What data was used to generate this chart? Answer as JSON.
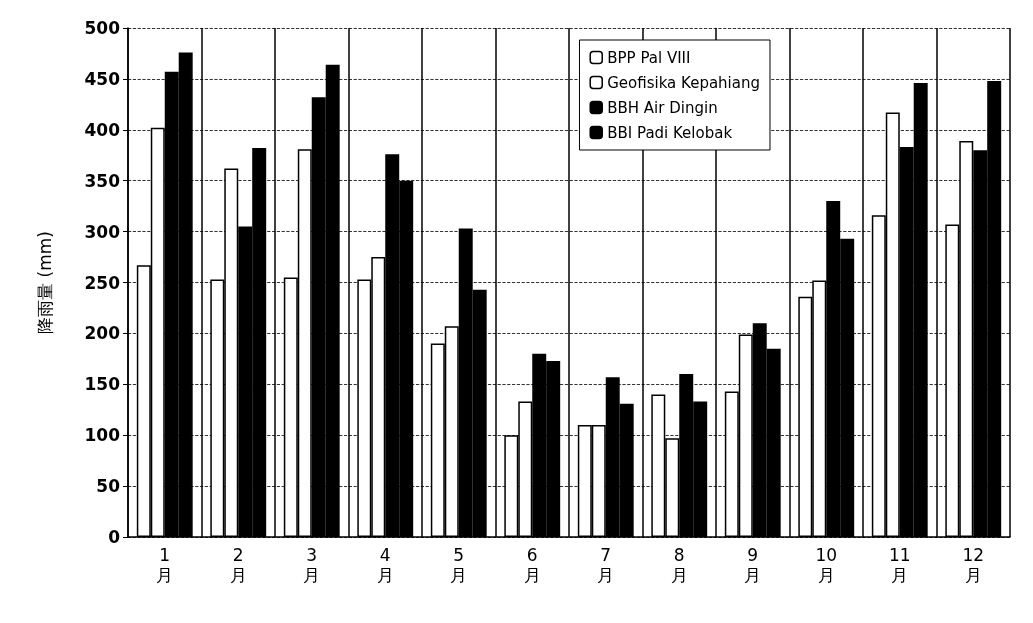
{
  "chart_data": {
    "type": "bar",
    "ylabel": "降雨量 (mm)",
    "categories": [
      "1月",
      "2月",
      "3月",
      "4月",
      "5月",
      "6月",
      "7月",
      "8月",
      "9月",
      "10月",
      "11月",
      "12月"
    ],
    "series": [
      {
        "name": "BPP Pal VIII",
        "color": "#ffffff",
        "values": [
          267,
          253,
          255,
          253,
          190,
          100,
          110,
          140,
          143,
          236,
          316,
          307
        ]
      },
      {
        "name": "Geofisika Kepahiang",
        "color": "#ffffff",
        "values": [
          402,
          362,
          381,
          275,
          207,
          133,
          110,
          97,
          199,
          252,
          417,
          389
        ]
      },
      {
        "name": "BBH Air Dingin",
        "color": "#000000",
        "values": [
          457,
          305,
          432,
          376,
          303,
          180,
          157,
          160,
          210,
          330,
          383,
          380
        ]
      },
      {
        "name": "BBI Padi Kelobak",
        "color": "#000000",
        "values": [
          476,
          382,
          464,
          350,
          243,
          173,
          131,
          133,
          185,
          293,
          446,
          448
        ]
      }
    ],
    "ylim": [
      0,
      500
    ],
    "yticks": [
      0,
      50,
      100,
      150,
      200,
      250,
      300,
      350,
      400,
      450,
      500
    ],
    "grid": true,
    "legend": "top right"
  }
}
